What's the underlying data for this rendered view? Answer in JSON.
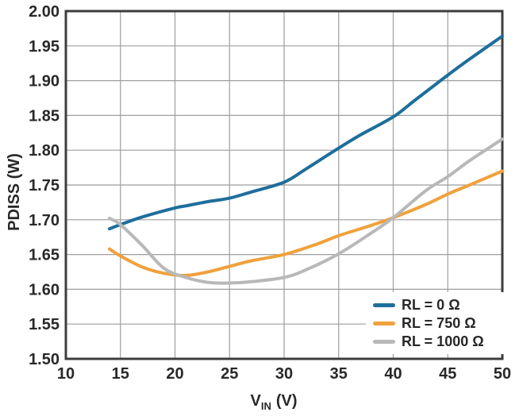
{
  "chart_data": {
    "type": "line",
    "title": "",
    "xlabel": {
      "main": "V",
      "sub": "IN",
      "unit": "(V)"
    },
    "ylabel": "PDISS (W)",
    "xlim": [
      10,
      50
    ],
    "ylim": [
      1.5,
      2.0
    ],
    "x_ticks": [
      "10",
      "15",
      "20",
      "25",
      "30",
      "35",
      "40",
      "45",
      "50"
    ],
    "y_ticks": [
      "1.50",
      "1.55",
      "1.60",
      "1.65",
      "1.70",
      "1.75",
      "1.80",
      "1.85",
      "1.90",
      "1.95",
      "2.00"
    ],
    "grid": true,
    "legend_position": "bottom-right",
    "series": [
      {
        "name": "RL = 0 Ω",
        "color": "#1e6e9c",
        "x": [
          14,
          15,
          17,
          20,
          21,
          23,
          25,
          27,
          30,
          32,
          35,
          37,
          40,
          42,
          45,
          47,
          50
        ],
        "y": [
          1.687,
          1.693,
          1.704,
          1.717,
          1.72,
          1.726,
          1.731,
          1.74,
          1.754,
          1.773,
          1.803,
          1.822,
          1.848,
          1.872,
          1.908,
          1.931,
          1.964
        ]
      },
      {
        "name": "RL = 750 Ω",
        "color": "#f0a13c",
        "x": [
          14,
          15,
          17,
          19,
          21,
          23,
          25,
          27,
          30,
          33,
          35,
          38,
          40,
          43,
          45,
          47,
          50
        ],
        "y": [
          1.658,
          1.648,
          1.632,
          1.623,
          1.62,
          1.625,
          1.633,
          1.641,
          1.65,
          1.665,
          1.677,
          1.692,
          1.703,
          1.722,
          1.737,
          1.75,
          1.77
        ]
      },
      {
        "name": "RL = 1000 Ω",
        "color": "#b8b8b8",
        "x": [
          14,
          15,
          17,
          19,
          21,
          23,
          25,
          27,
          30,
          32,
          35,
          38,
          40,
          43,
          45,
          47,
          50
        ],
        "y": [
          1.702,
          1.693,
          1.663,
          1.63,
          1.617,
          1.61,
          1.609,
          1.611,
          1.617,
          1.628,
          1.651,
          1.681,
          1.703,
          1.742,
          1.762,
          1.785,
          1.816
        ]
      }
    ]
  },
  "colors": {
    "grid": "#9e9e9e",
    "frame": "#3d3d3d",
    "text": "#282828",
    "background": "#ffffff"
  }
}
